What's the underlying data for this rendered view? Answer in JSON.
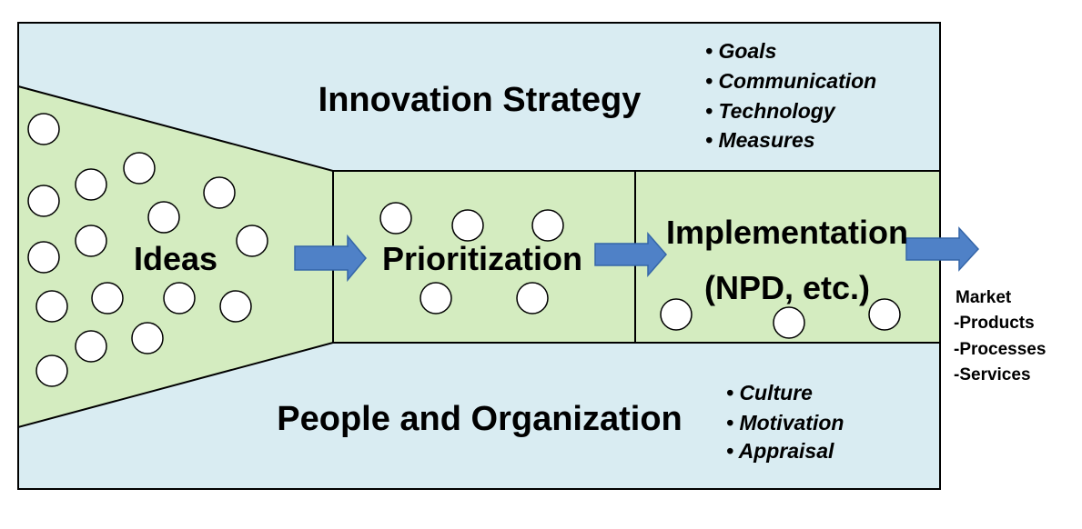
{
  "colors": {
    "band_fill": "#d9ecf2",
    "funnel_fill": "#d4ecc0",
    "arrow_fill": "#4f81c7",
    "arrow_stroke": "#3566a8",
    "circle_fill": "#ffffff",
    "stroke": "#000000"
  },
  "strategy": {
    "title": "Innovation Strategy",
    "bullets": [
      "• Goals",
      "• Communication",
      "• Technology",
      "• Measures"
    ]
  },
  "people": {
    "title": "People and Organization",
    "bullets": [
      "• Culture",
      "• Motivation",
      "• Appraisal"
    ]
  },
  "stages": {
    "ideas": "Ideas",
    "prioritization": "Prioritization",
    "implementation_line1": "Implementation",
    "implementation_line2": "(NPD, etc.)"
  },
  "market": {
    "title": "Market",
    "items": [
      "-Products",
      "-Processes",
      "-Services"
    ]
  }
}
